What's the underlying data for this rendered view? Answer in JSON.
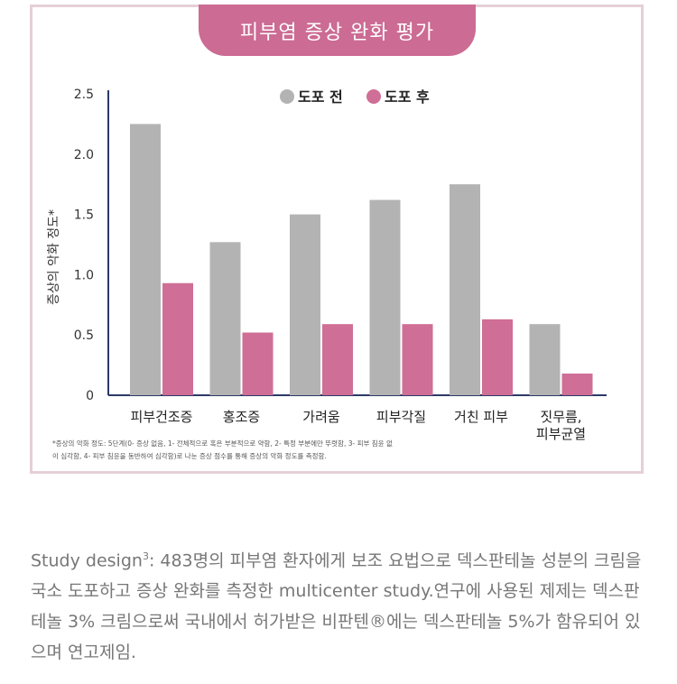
{
  "chart_title": "피부염 증상 완화 평가",
  "chart_data": {
    "type": "bar",
    "title": "피부염 증상 완화 평가",
    "ylabel": "증상의 악화 정도*",
    "xlabel": "",
    "ylim": [
      0,
      2.5
    ],
    "yticks": [
      "0",
      "0.5",
      "1.0",
      "1.5",
      "2.0",
      "2.5"
    ],
    "categories": [
      "피부건조증",
      "홍조증",
      "가려움",
      "피부각질",
      "거친 피부",
      "짓무름,\n피부균열"
    ],
    "series": [
      {
        "name": "도포 전",
        "color": "#b3b3b3",
        "values": [
          2.25,
          1.27,
          1.5,
          1.62,
          1.75,
          0.59
        ]
      },
      {
        "name": "도포 후",
        "color": "#cf6e96",
        "values": [
          0.93,
          0.52,
          0.59,
          0.59,
          0.63,
          0.18
        ]
      }
    ],
    "legend_position": "top"
  },
  "footnote": {
    "line1": "*증상의 악화 정도: 5단계(0- 증상 없음, 1- 전체적으로 혹은 부분적으로 약함, 2- 특정 부분에만 뚜렷함, 3- 피부 침윤 없",
    "line2": "이 심각함, 4- 피부 침윤을 동반하여 심각함)로 나눈 증상 점수를 통해 증상의 악화 정도를 측정함."
  },
  "study": {
    "prefix": "Study design",
    "sup": "3",
    "body": ": 483명의 피부염 환자에게 보조 요법으로 덱스판테놀 성분의 크림을 국소 도포하고 증상 완화를 측정한 multicenter study.연구에 사용된 제제는 덱스판테놀 3% 크림으로써 국내에서 허가받은 비판텐®에는 덱스판테놀 5%가 함유되어 있으며 연고제임."
  }
}
